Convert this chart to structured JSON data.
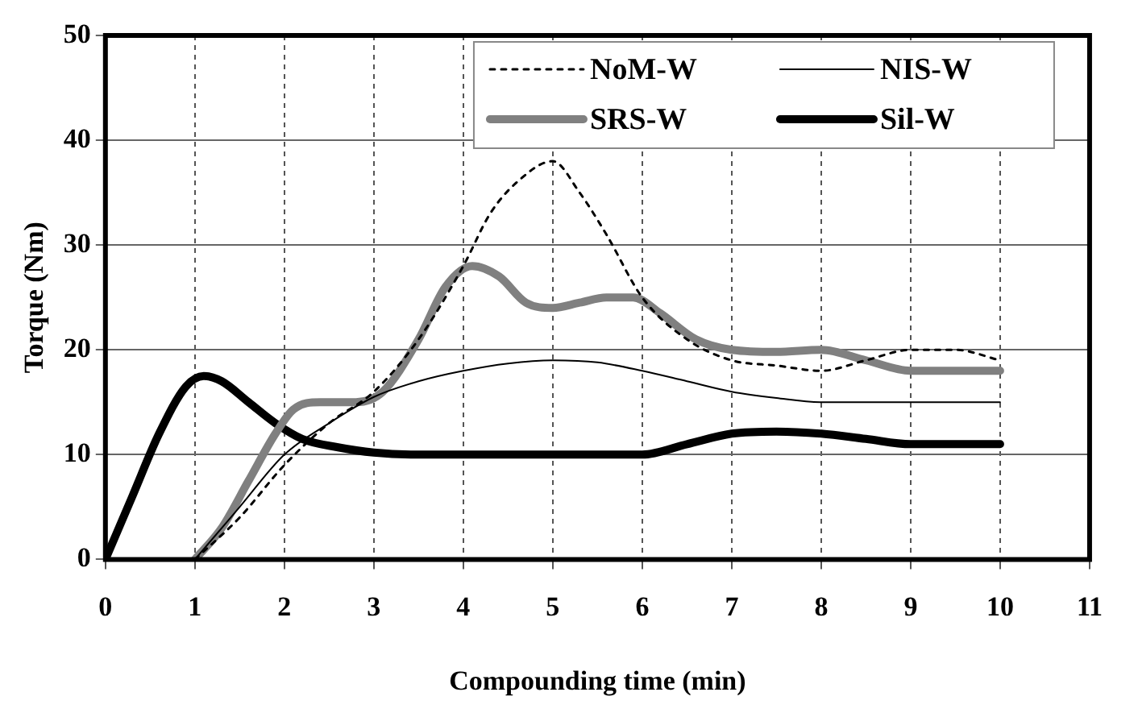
{
  "chart_data": {
    "type": "line",
    "xlabel": "Compounding time (min)",
    "ylabel": "Torque (Nm)",
    "xlim": [
      0,
      11
    ],
    "xticks": [
      0,
      1,
      2,
      3,
      4,
      5,
      6,
      7,
      8,
      9,
      10,
      11
    ],
    "ylim": [
      0,
      50
    ],
    "yticks": [
      0,
      10,
      20,
      30,
      40,
      50
    ],
    "grid": true,
    "legend": "top right",
    "marker": "none",
    "series": [
      {
        "name": "NoM-W",
        "color": "#000000",
        "line_style": "dotted",
        "x": [
          1,
          1.5,
          2,
          2.5,
          3,
          3.5,
          4,
          4.3,
          4.6,
          5,
          5.3,
          5.6,
          6,
          6.5,
          7,
          7.5,
          8,
          8.5,
          9,
          9.5,
          10
        ],
        "values": [
          0,
          4,
          9,
          13,
          16,
          21,
          28,
          33,
          36,
          38,
          35,
          31,
          25,
          21,
          19,
          18.5,
          18,
          19,
          20,
          20,
          19
        ]
      },
      {
        "name": "NIS-W",
        "color": "#000000",
        "line_style": "solid",
        "x": [
          1,
          1.5,
          2,
          2.5,
          3,
          3.5,
          4,
          4.5,
          5,
          5.5,
          6,
          6.5,
          7,
          7.5,
          8,
          9,
          10
        ],
        "values": [
          0,
          5,
          10,
          13,
          15.5,
          17,
          18,
          18.7,
          19,
          18.8,
          18,
          17,
          16,
          15.4,
          15,
          15,
          15
        ]
      },
      {
        "name": "SRS-W",
        "color": "#808080",
        "line_style": "solid",
        "x": [
          1,
          1.3,
          1.6,
          1.9,
          2.1,
          2.4,
          2.8,
          3.1,
          3.5,
          3.8,
          4.1,
          4.4,
          4.7,
          5,
          5.3,
          5.6,
          5.9,
          6.2,
          6.6,
          7,
          7.5,
          8,
          8.5,
          9,
          9.5,
          10
        ],
        "values": [
          0,
          3,
          7.5,
          12,
          14.3,
          15,
          15,
          16,
          21,
          26,
          28,
          27,
          24.5,
          24,
          24.5,
          25,
          25,
          23.5,
          21,
          20,
          19.8,
          20,
          19,
          18,
          18,
          18
        ]
      },
      {
        "name": "Sil-W",
        "color": "#000000",
        "line_style": "solid",
        "x": [
          0,
          0.3,
          0.6,
          0.9,
          1.1,
          1.3,
          1.6,
          1.9,
          2.2,
          2.6,
          3,
          3.5,
          4,
          5,
          5.5,
          6,
          6.5,
          7,
          7.5,
          8,
          8.5,
          9,
          9.5,
          10
        ],
        "values": [
          0,
          6,
          12,
          16.5,
          17.5,
          17,
          15,
          13,
          11.5,
          10.7,
          10.2,
          10,
          10,
          10,
          10,
          10,
          11,
          12,
          12.2,
          12,
          11.5,
          11,
          11,
          11
        ]
      }
    ]
  }
}
